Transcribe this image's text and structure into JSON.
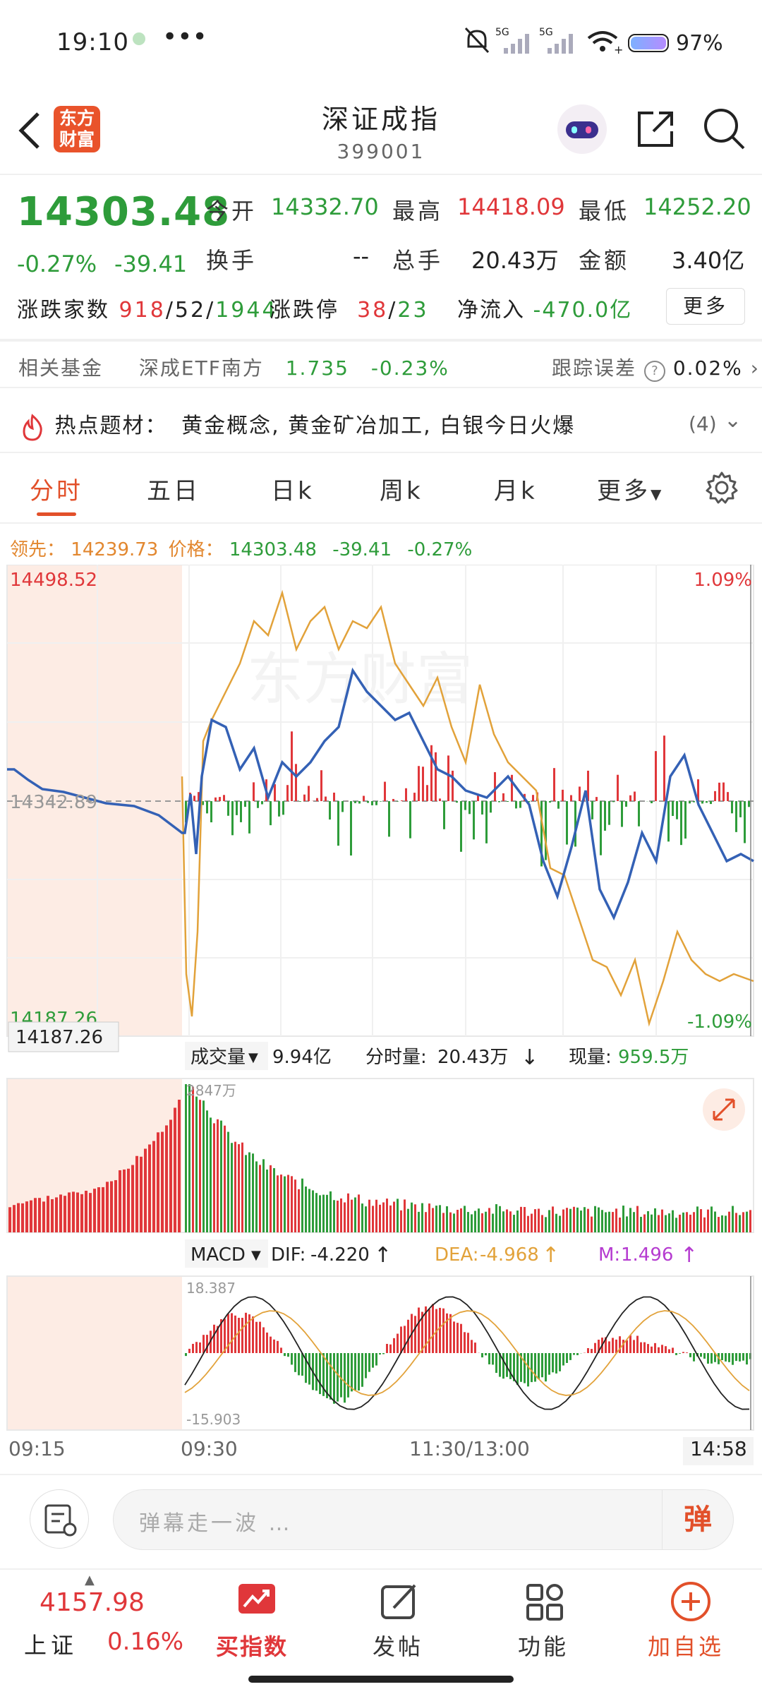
{
  "status": {
    "time": "19:10",
    "dots": "•••",
    "net1": "5G",
    "net2": "5G",
    "battery": "97%"
  },
  "header": {
    "title": "深证成指",
    "code": "399001",
    "logo_line1": "东方",
    "logo_line2": "财富"
  },
  "quote": {
    "price": "14303.48",
    "change_pct": "-0.27%",
    "change": "-39.41",
    "open_label": "今开",
    "open": "14332.70",
    "high_label": "最高",
    "high": "14418.09",
    "low_label": "最低",
    "low": "14252.20",
    "turnover_label": "换手",
    "turnover": "--",
    "vol_label": "总手",
    "vol": "20.43万",
    "amount_label": "金额",
    "amount": "3.40亿",
    "adv_label": "涨跌家数",
    "adv_up": "918",
    "adv_flat": "52",
    "adv_down": "1944",
    "limit_label": "涨跌停",
    "limit_up": "38",
    "limit_down": "23",
    "inflow_label": "净流入",
    "inflow": "-470.0亿",
    "more": "更多"
  },
  "fund": {
    "label": "相关基金",
    "name": "深成ETF南方",
    "price": "1.735",
    "pct": "-0.23%",
    "track_label": "跟踪误差",
    "track": "0.02%"
  },
  "hot": {
    "label": "热点题材：",
    "text": "黄金概念, 黄金矿冶加工, 白银今日火爆",
    "count": "(4)"
  },
  "tabs": [
    "分时",
    "五日",
    "日k",
    "周k",
    "月k",
    "更多"
  ],
  "chart_header": {
    "lead_label": "领先：",
    "lead": "14239.73",
    "price_label": "价格：",
    "price": "14303.48",
    "chg": "-39.41",
    "pct": "-0.27%"
  },
  "chart": {
    "y_top": "14498.52",
    "y_mid": "14342.89",
    "y_bottom": "14187.26",
    "y_bottom_box": "14187.26",
    "pct_top": "1.09%",
    "pct_bottom": "-1.09%",
    "watermark": "东方财富"
  },
  "volume": {
    "label": "成交量",
    "total": "9.94亿",
    "tick_label": "分时量:",
    "tick": "20.43万",
    "now_label": "现量:",
    "now": "959.5万",
    "max": "2847万"
  },
  "macd": {
    "label": "MACD",
    "dif_label": "DIF:",
    "dif": "-4.220",
    "dea_label": "DEA:",
    "dea": "-4.968",
    "m_label": "M:",
    "m": "1.496",
    "top": "18.387",
    "bottom": "-15.903"
  },
  "time_axis": [
    "09:15",
    "09:30",
    "11:30/13:00",
    "14:58"
  ],
  "danmu": {
    "placeholder": "弹幕走一波 …",
    "button": "弹"
  },
  "nav": {
    "index_value": "4157.98",
    "index_name": "上证",
    "index_pct": "0.16%",
    "items": [
      "买指数",
      "发帖",
      "功能",
      "加自选"
    ]
  },
  "colors": {
    "up": "#e0373a",
    "down": "#2e9c3a",
    "accent": "#e2502a",
    "price_line": "#3461b5",
    "lead_line": "#e2a23a"
  }
}
